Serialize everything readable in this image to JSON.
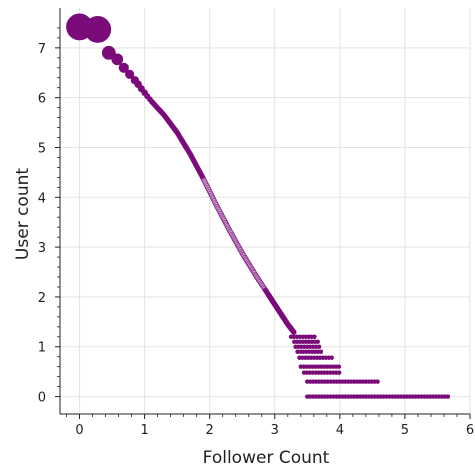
{
  "chart_data": {
    "type": "scatter",
    "title": "",
    "xlabel": "Follower Count",
    "ylabel": "User count",
    "xlim": [
      -0.3,
      6.0
    ],
    "ylim": [
      -0.35,
      7.8
    ],
    "xticks": [
      0,
      1,
      2,
      3,
      4,
      5,
      6
    ],
    "yticks": [
      0,
      1,
      2,
      3,
      4,
      5,
      6,
      7
    ],
    "xtick_labels": [
      "0",
      "1",
      "2",
      "3",
      "4",
      "5",
      "6"
    ],
    "ytick_labels": [
      "0",
      "1",
      "2",
      "3",
      "4",
      "5",
      "6",
      "7"
    ],
    "grid": true,
    "marker_color": "#7b0a7b",
    "marker_color_light": "#c9a3cc",
    "points": [
      {
        "x": 0.0,
        "y": 7.42,
        "size": 1.0
      },
      {
        "x": 0.28,
        "y": 7.37,
        "size": 1.0
      },
      {
        "x": 0.45,
        "y": 6.9,
        "size": 0.5
      },
      {
        "x": 0.58,
        "y": 6.77,
        "size": 0.42
      },
      {
        "x": 0.68,
        "y": 6.6,
        "size": 0.36
      },
      {
        "x": 0.77,
        "y": 6.47,
        "size": 0.32
      },
      {
        "x": 0.85,
        "y": 6.35,
        "size": 0.29
      },
      {
        "x": 0.9,
        "y": 6.27,
        "size": 0.26
      },
      {
        "x": 0.95,
        "y": 6.18,
        "size": 0.24
      },
      {
        "x": 1.0,
        "y": 6.1,
        "size": 0.22
      },
      {
        "x": 1.04,
        "y": 6.03,
        "size": 0.2
      },
      {
        "x": 1.08,
        "y": 5.97,
        "size": 0.19
      },
      {
        "x": 1.11,
        "y": 5.92,
        "size": 0.18
      }
    ],
    "curve": [
      [
        1.11,
        5.92
      ],
      [
        1.3,
        5.65
      ],
      [
        1.5,
        5.3
      ],
      [
        1.7,
        4.87
      ],
      [
        1.9,
        4.38
      ],
      [
        2.1,
        3.85
      ],
      [
        2.3,
        3.35
      ],
      [
        2.5,
        2.88
      ],
      [
        2.7,
        2.45
      ],
      [
        2.9,
        2.05
      ],
      [
        3.0,
        1.85
      ],
      [
        3.1,
        1.65
      ],
      [
        3.2,
        1.45
      ],
      [
        3.3,
        1.28
      ]
    ],
    "tail_rows": [
      {
        "y": 1.2,
        "x": [
          3.25,
          3.62
        ]
      },
      {
        "y": 1.1,
        "x": [
          3.3,
          3.66
        ]
      },
      {
        "y": 1.0,
        "x": [
          3.32,
          3.68
        ]
      },
      {
        "y": 0.9,
        "x": [
          3.35,
          3.72
        ]
      },
      {
        "y": 0.78,
        "x": [
          3.38,
          3.9
        ]
      },
      {
        "y": 0.6,
        "x": [
          3.4,
          4.0
        ]
      },
      {
        "y": 0.48,
        "x": [
          3.45,
          4.0
        ]
      },
      {
        "y": 0.3,
        "x": [
          3.5,
          4.6
        ]
      },
      {
        "y": 0.0,
        "x": [
          3.5,
          5.7
        ]
      }
    ]
  }
}
